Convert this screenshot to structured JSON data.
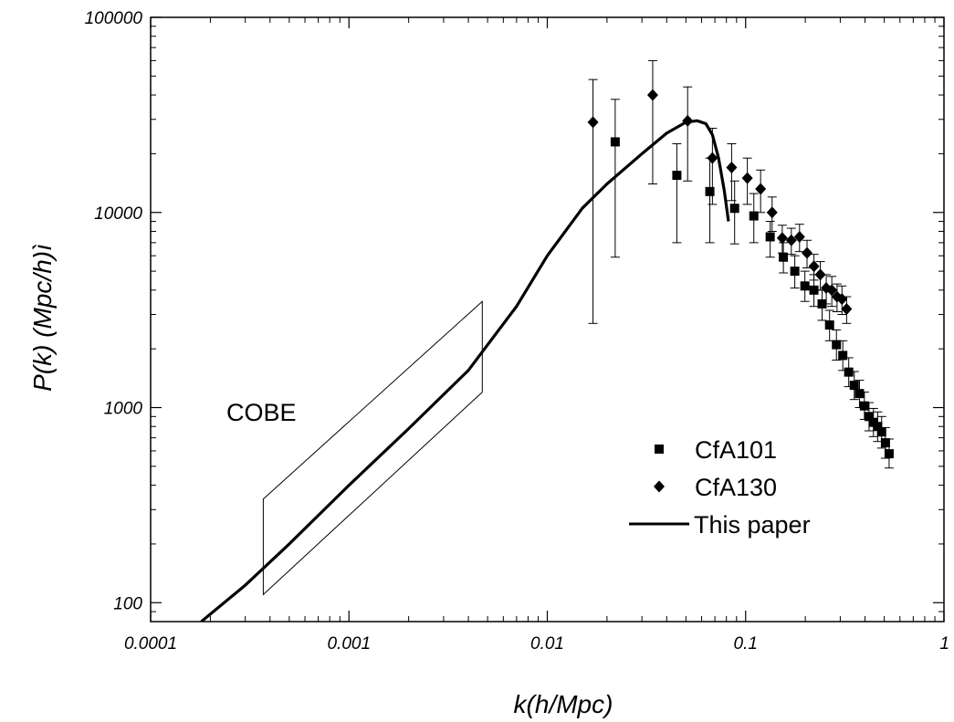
{
  "chart_data": {
    "type": "scatter",
    "xscale": "log",
    "yscale": "log",
    "xlim": [
      0.0001,
      1
    ],
    "ylim": [
      80,
      100000
    ],
    "xlabel": "k(h/Mpc)",
    "ylabel": "P(k) (Mpc/h)ì",
    "xticks": [
      {
        "value": 0.0001,
        "label": "0.0001"
      },
      {
        "value": 0.001,
        "label": "0.001"
      },
      {
        "value": 0.01,
        "label": "0.01"
      },
      {
        "value": 0.1,
        "label": "0.1"
      },
      {
        "value": 1,
        "label": "1"
      }
    ],
    "yticks": [
      {
        "value": 100,
        "label": "100"
      },
      {
        "value": 1000,
        "label": "1000"
      },
      {
        "value": 10000,
        "label": "10000"
      },
      {
        "value": 100000,
        "label": "100000"
      }
    ],
    "grid": false,
    "legend_position": "bottom-right",
    "annotation": {
      "text": "COBE",
      "box": [
        [
          0.00037,
          110
        ],
        [
          0.00037,
          340
        ],
        [
          0.0047,
          3500
        ],
        [
          0.0047,
          1200
        ]
      ]
    },
    "series": [
      {
        "name": "CfA101",
        "marker": "square",
        "points": [
          {
            "x": 0.022,
            "y": 23000,
            "lo": 5900,
            "hi": 38000
          },
          {
            "x": 0.045,
            "y": 15500,
            "lo": 7000,
            "hi": 22500
          },
          {
            "x": 0.066,
            "y": 12800,
            "lo": 7000,
            "hi": 19000
          },
          {
            "x": 0.088,
            "y": 10500,
            "lo": 6900,
            "hi": 14500
          },
          {
            "x": 0.11,
            "y": 9600,
            "lo": 7000,
            "hi": 12500
          },
          {
            "x": 0.133,
            "y": 7500,
            "lo": 5900,
            "hi": 9000
          },
          {
            "x": 0.155,
            "y": 5900,
            "lo": 4900,
            "hi": 7000
          },
          {
            "x": 0.177,
            "y": 5000,
            "lo": 4100,
            "hi": 6000
          },
          {
            "x": 0.199,
            "y": 4200,
            "lo": 3500,
            "hi": 5000
          },
          {
            "x": 0.221,
            "y": 4000,
            "lo": 3300,
            "hi": 4800
          },
          {
            "x": 0.243,
            "y": 3400,
            "lo": 2800,
            "hi": 4000
          },
          {
            "x": 0.265,
            "y": 2650,
            "lo": 2200,
            "hi": 3150
          },
          {
            "x": 0.287,
            "y": 2100,
            "lo": 1750,
            "hi": 2500
          },
          {
            "x": 0.309,
            "y": 1850,
            "lo": 1550,
            "hi": 2200
          },
          {
            "x": 0.331,
            "y": 1520,
            "lo": 1280,
            "hi": 1800
          },
          {
            "x": 0.353,
            "y": 1300,
            "lo": 1100,
            "hi": 1530
          },
          {
            "x": 0.375,
            "y": 1180,
            "lo": 1000,
            "hi": 1380
          },
          {
            "x": 0.397,
            "y": 1020,
            "lo": 870,
            "hi": 1200
          },
          {
            "x": 0.419,
            "y": 900,
            "lo": 760,
            "hi": 1060
          },
          {
            "x": 0.441,
            "y": 840,
            "lo": 710,
            "hi": 990
          },
          {
            "x": 0.463,
            "y": 800,
            "lo": 670,
            "hi": 950
          },
          {
            "x": 0.485,
            "y": 750,
            "lo": 620,
            "hi": 900
          },
          {
            "x": 0.507,
            "y": 660,
            "lo": 550,
            "hi": 790
          },
          {
            "x": 0.529,
            "y": 580,
            "lo": 490,
            "hi": 690
          }
        ]
      },
      {
        "name": "CfA130",
        "marker": "diamond",
        "points": [
          {
            "x": 0.017,
            "y": 29000,
            "lo": 2700,
            "hi": 48000
          },
          {
            "x": 0.034,
            "y": 40000,
            "lo": 14000,
            "hi": 60000
          },
          {
            "x": 0.051,
            "y": 29500,
            "lo": 14500,
            "hi": 44000
          },
          {
            "x": 0.068,
            "y": 19000,
            "lo": 11000,
            "hi": 27000
          },
          {
            "x": 0.085,
            "y": 17000,
            "lo": 11500,
            "hi": 22500
          },
          {
            "x": 0.102,
            "y": 15000,
            "lo": 11000,
            "hi": 19000
          },
          {
            "x": 0.119,
            "y": 13200,
            "lo": 10000,
            "hi": 16500
          },
          {
            "x": 0.136,
            "y": 10000,
            "lo": 8000,
            "hi": 12000
          },
          {
            "x": 0.153,
            "y": 7400,
            "lo": 6200,
            "hi": 8600
          },
          {
            "x": 0.17,
            "y": 7200,
            "lo": 6100,
            "hi": 8300
          },
          {
            "x": 0.187,
            "y": 7500,
            "lo": 6300,
            "hi": 8700
          },
          {
            "x": 0.204,
            "y": 6200,
            "lo": 5200,
            "hi": 7200
          },
          {
            "x": 0.221,
            "y": 5300,
            "lo": 4500,
            "hi": 6100
          },
          {
            "x": 0.238,
            "y": 4800,
            "lo": 4000,
            "hi": 5600
          },
          {
            "x": 0.255,
            "y": 4100,
            "lo": 3400,
            "hi": 4800
          },
          {
            "x": 0.272,
            "y": 4000,
            "lo": 3300,
            "hi": 4700
          },
          {
            "x": 0.289,
            "y": 3700,
            "lo": 3100,
            "hi": 4300
          },
          {
            "x": 0.306,
            "y": 3600,
            "lo": 3000,
            "hi": 4200
          },
          {
            "x": 0.323,
            "y": 3200,
            "lo": 2700,
            "hi": 3700
          }
        ]
      },
      {
        "name": "This paper",
        "marker": "line",
        "points": [
          {
            "x": 0.00018,
            "y": 80
          },
          {
            "x": 0.0003,
            "y": 123
          },
          {
            "x": 0.0005,
            "y": 200
          },
          {
            "x": 0.001,
            "y": 400
          },
          {
            "x": 0.002,
            "y": 780
          },
          {
            "x": 0.004,
            "y": 1550
          },
          {
            "x": 0.007,
            "y": 3300
          },
          {
            "x": 0.01,
            "y": 6000
          },
          {
            "x": 0.015,
            "y": 10500
          },
          {
            "x": 0.02,
            "y": 14000
          },
          {
            "x": 0.03,
            "y": 20000
          },
          {
            "x": 0.04,
            "y": 25500
          },
          {
            "x": 0.05,
            "y": 29000
          },
          {
            "x": 0.057,
            "y": 29500
          },
          {
            "x": 0.063,
            "y": 28500
          },
          {
            "x": 0.068,
            "y": 25000
          },
          {
            "x": 0.073,
            "y": 19000
          },
          {
            "x": 0.078,
            "y": 13000
          },
          {
            "x": 0.082,
            "y": 9000
          }
        ]
      }
    ]
  }
}
